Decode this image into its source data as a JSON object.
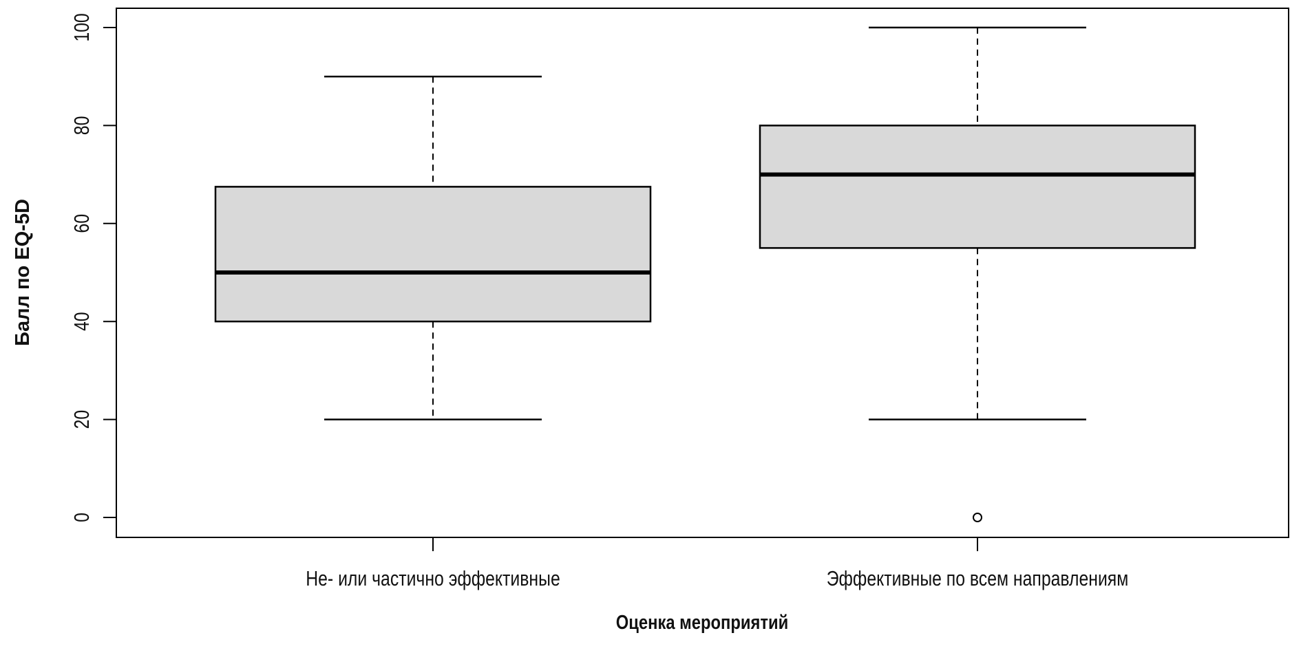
{
  "chart_data": {
    "type": "boxplot",
    "title": "",
    "xlabel": "Оценка мероприятий",
    "ylabel": "Балл по EQ-5D",
    "ylim": [
      -4,
      104
    ],
    "yticks": [
      0,
      20,
      40,
      60,
      80,
      100
    ],
    "grid": false,
    "categories": [
      "Не- или частично эффективные",
      "Эффективные по всем направлениям"
    ],
    "boxes": [
      {
        "category": "Не- или частично эффективные",
        "whisker_low": 20,
        "q1": 40,
        "median": 50,
        "q3": 67.5,
        "whisker_high": 90,
        "outliers": []
      },
      {
        "category": "Эффективные по всем направлениям",
        "whisker_low": 20,
        "q1": 55,
        "median": 70,
        "q3": 80,
        "whisker_high": 100,
        "outliers": [
          0
        ]
      }
    ],
    "colors": {
      "box_fill": "#d9d9d9",
      "line": "#000000"
    }
  }
}
